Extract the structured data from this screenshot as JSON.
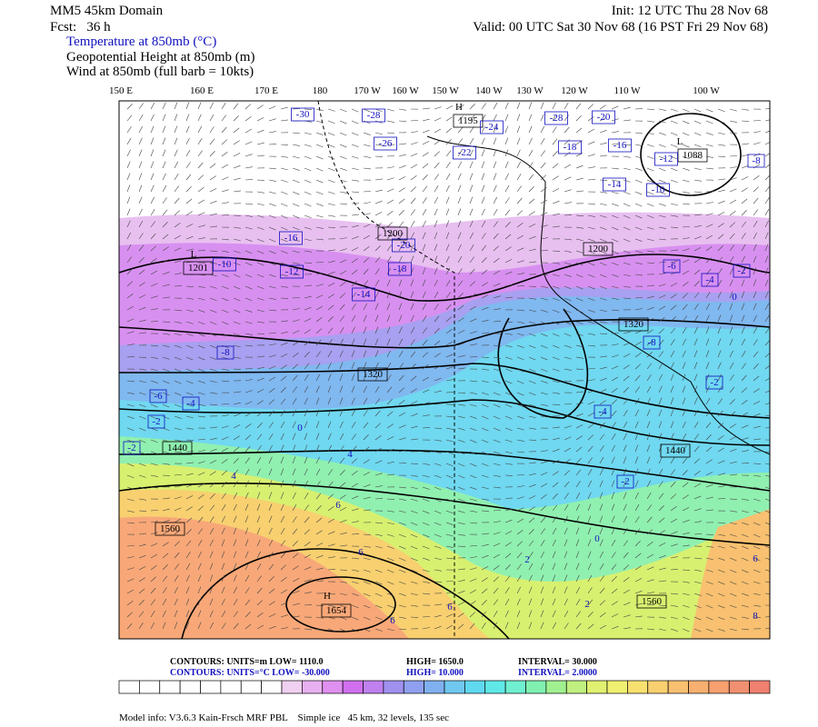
{
  "header": {
    "model": "MM5 45km Domain",
    "forecast": "Fcst:   36 h",
    "init": "Init: 12 UTC Thu 28 Nov 68",
    "valid": "Valid: 00 UTC Sat 30 Nov 68 (16 PST Fri 29 Nov 68)",
    "fields": [
      "Temperature at 850mb (°C)",
      "Geopotential Height at 850mb (m)",
      "Wind at 850mb (full barb = 10kts)"
    ]
  },
  "longitudes": [
    "150 E",
    "160 E",
    "170 E",
    "180",
    "170 W",
    "160 W",
    "150 W",
    "140 W",
    "130 W",
    "120 W",
    "110 W",
    "100 W"
  ],
  "map_labels": {
    "heights": [
      "1200",
      "1200",
      "1320",
      "1320",
      "1440",
      "1440",
      "1560",
      "1560",
      "1201",
      "1088",
      "1195",
      "1654",
      "L",
      "L",
      "H",
      "H"
    ],
    "temps": [
      "-28",
      "-28",
      "-20",
      "-30",
      "-24",
      "-26",
      "-22",
      "-18",
      "-16",
      "-14",
      "-12",
      "-10",
      "-16",
      "-20",
      "-18",
      "-12",
      "-14",
      "-10",
      "-6",
      "-4",
      "-2",
      "0",
      "-8",
      "-8",
      "-2",
      "-8",
      "-6",
      "-4",
      "-2",
      "-2",
      "0",
      "-4",
      "4",
      "4",
      "-2",
      "6",
      "6",
      "0",
      "2",
      "2",
      "6",
      "6",
      "6",
      "8"
    ]
  },
  "contours": [
    [
      "CONTOURS:  UNITS=m  LOW=  1110.0",
      "HIGH=  1650.0",
      "INTERVAL=  30.000"
    ],
    [
      "CONTOURS:  UNITS=°C  LOW=  -30.000",
      "HIGH=  10.000",
      "INTERVAL=  2.0000"
    ]
  ],
  "footer": "Model info: V3.6.3 Kain-Frsch MRF PBL    Simple ice   45 km, 32 levels, 135 sec"
}
